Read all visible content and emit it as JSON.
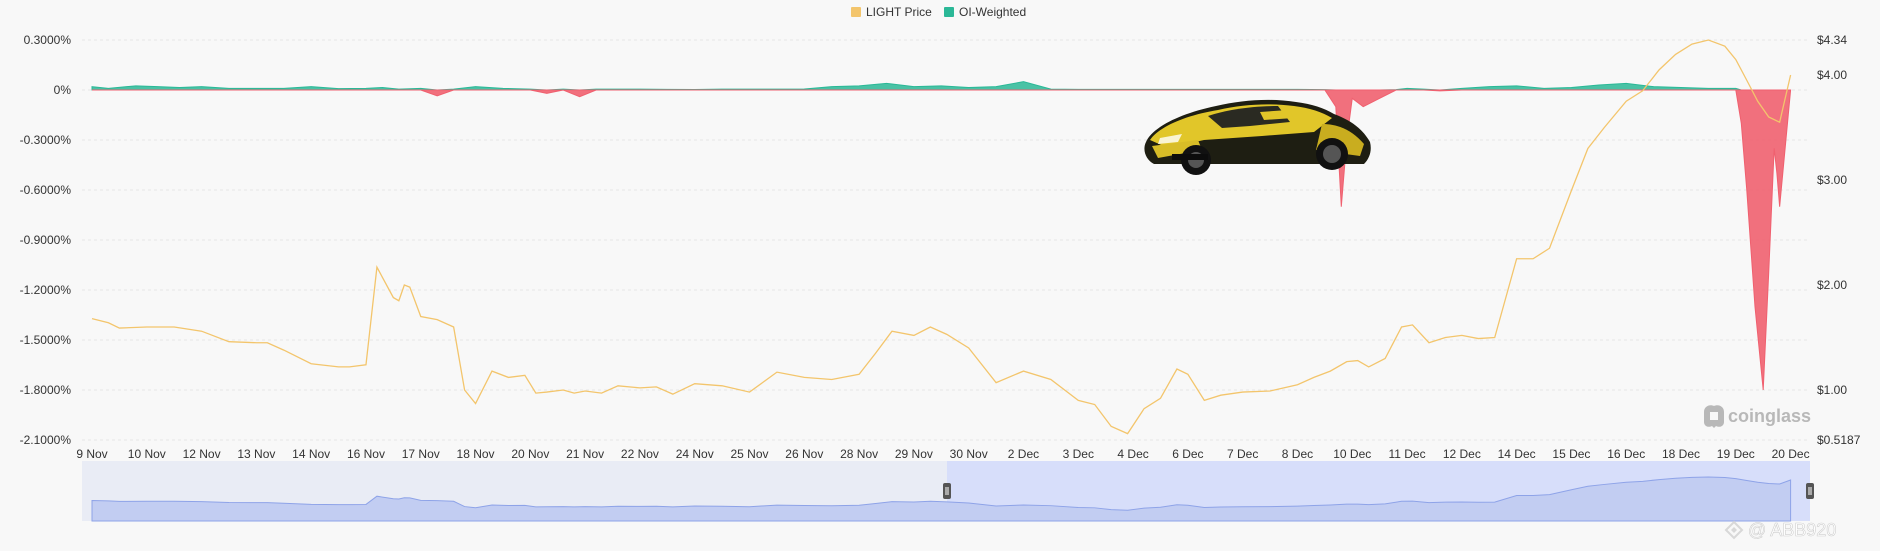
{
  "legend": [
    {
      "label": "LIGHT Price",
      "color": "#f3c56c"
    },
    {
      "label": "OI-Weighted",
      "color": "#2bb897"
    }
  ],
  "brand": {
    "logo_text": "coinglass",
    "icon": "coinglass-logo-icon"
  },
  "watermark": {
    "text": "@ ABB920",
    "icon": "binance-square-icon"
  },
  "chart_data": {
    "type": "area",
    "categories": [
      "9 Nov",
      "10 Nov",
      "12 Nov",
      "13 Nov",
      "14 Nov",
      "16 Nov",
      "17 Nov",
      "18 Nov",
      "20 Nov",
      "21 Nov",
      "22 Nov",
      "24 Nov",
      "25 Nov",
      "26 Nov",
      "28 Nov",
      "29 Nov",
      "30 Nov",
      "2 Dec",
      "3 Dec",
      "4 Dec",
      "6 Dec",
      "7 Dec",
      "8 Dec",
      "10 Dec",
      "11 Dec",
      "12 Dec",
      "14 Dec",
      "15 Dec",
      "16 Dec",
      "18 Dec",
      "19 Dec",
      "20 Dec"
    ],
    "y_left": {
      "ticks": [
        "0.3000%",
        "0%",
        "-0.3000%",
        "-0.6000%",
        "-0.9000%",
        "-1.2000%",
        "-1.5000%",
        "-1.8000%",
        "-2.1000%"
      ],
      "ylim": [
        -2.1,
        0.3
      ]
    },
    "y_right": {
      "ticks": [
        "$4.34",
        "$4.00",
        "$3.00",
        "$2.00",
        "$1.00",
        "$0.5187"
      ],
      "ylim": [
        0.5187,
        4.34
      ]
    },
    "series": [
      {
        "name": "OI-Weighted",
        "axis": "left",
        "positive_color": "#2bb897",
        "negative_color": "#f0606f",
        "x": [
          0,
          0.3,
          0.8,
          1.2,
          1.6,
          2,
          2.5,
          3,
          3.5,
          4,
          4.5,
          5,
          5.3,
          5.6,
          6,
          6.3,
          6.6,
          7,
          7.5,
          8,
          8.3,
          8.6,
          8.9,
          9.2,
          9.5,
          10,
          10.5,
          11,
          11.5,
          12,
          12.5,
          13,
          13.5,
          14,
          14.5,
          15,
          15.5,
          16,
          16.5,
          17,
          17.5,
          18,
          18.5,
          19,
          19.5,
          20,
          20.5,
          21,
          21.5,
          22,
          22.5,
          22.7,
          22.8,
          22.9,
          23,
          23.2,
          23.5,
          23.8,
          24,
          24.3,
          24.6,
          25,
          25.5,
          26,
          26.5,
          27,
          27.5,
          28,
          28.5,
          29,
          29.5,
          30,
          30.1,
          30.2,
          30.35,
          30.5,
          30.6,
          30.7,
          30.75,
          30.8,
          31
        ],
        "values": [
          0.02,
          0.01,
          0.025,
          0.02,
          0.015,
          0.02,
          0.01,
          0.01,
          0.01,
          0.02,
          0.008,
          0.01,
          0.015,
          0.005,
          0.01,
          -0.035,
          0.005,
          0.02,
          0.01,
          0.005,
          -0.02,
          0.005,
          -0.04,
          0.005,
          0.005,
          0.005,
          0.004,
          0.003,
          0.005,
          0.005,
          0.005,
          0.006,
          0.02,
          0.025,
          0.04,
          0.02,
          0.025,
          0.015,
          0.02,
          0.05,
          0.005,
          0.004,
          0.004,
          0.004,
          0.004,
          0.004,
          0.004,
          0.004,
          0.004,
          0.004,
          0.002,
          -0.1,
          -0.7,
          -0.3,
          -0.05,
          -0.1,
          -0.05,
          0.002,
          0.01,
          0.005,
          -0.005,
          0.01,
          0.02,
          0.025,
          0.01,
          0.015,
          0.03,
          0.04,
          0.02,
          0.015,
          0.01,
          0.01,
          -0.2,
          -0.6,
          -1.3,
          -1.8,
          -1.1,
          -0.35,
          -0.5,
          -0.7,
          0.0
        ]
      },
      {
        "name": "LIGHT Price",
        "axis": "right",
        "color": "#f3c56c",
        "x": [
          0,
          0.3,
          0.5,
          1,
          1.5,
          2,
          2.5,
          3,
          3.2,
          3.5,
          4,
          4.5,
          4.7,
          5,
          5.2,
          5.5,
          5.6,
          5.7,
          5.8,
          6,
          6.3,
          6.6,
          6.8,
          7,
          7.3,
          7.6,
          7.9,
          8.1,
          8.3,
          8.6,
          8.8,
          9,
          9.3,
          9.6,
          10,
          10.3,
          10.6,
          11,
          11.5,
          12,
          12.5,
          13,
          13.5,
          14,
          14.3,
          14.6,
          15,
          15.3,
          15.6,
          16,
          16.5,
          17,
          17.5,
          18,
          18.3,
          18.6,
          18.9,
          19.2,
          19.5,
          19.8,
          20,
          20.3,
          20.6,
          21,
          21.5,
          22,
          22.3,
          22.6,
          22.9,
          23.1,
          23.3,
          23.6,
          23.9,
          24.1,
          24.4,
          24.7,
          25,
          25.3,
          25.6,
          26,
          26.3,
          26.6,
          27,
          27.3,
          27.6,
          28,
          28.3,
          28.6,
          28.9,
          29.2,
          29.5,
          29.8,
          30,
          30.2,
          30.4,
          30.6,
          30.8,
          31
        ],
        "values": [
          1.68,
          1.64,
          1.59,
          1.6,
          1.6,
          1.56,
          1.46,
          1.45,
          1.45,
          1.38,
          1.25,
          1.22,
          1.22,
          1.24,
          2.17,
          1.88,
          1.85,
          2.0,
          1.98,
          1.7,
          1.67,
          1.6,
          1.0,
          0.87,
          1.18,
          1.12,
          1.14,
          0.97,
          0.98,
          1.0,
          0.97,
          0.99,
          0.97,
          1.04,
          1.02,
          1.03,
          0.96,
          1.06,
          1.04,
          0.98,
          1.17,
          1.12,
          1.1,
          1.15,
          1.35,
          1.56,
          1.52,
          1.6,
          1.53,
          1.4,
          1.07,
          1.18,
          1.1,
          0.9,
          0.86,
          0.65,
          0.58,
          0.82,
          0.92,
          1.2,
          1.15,
          0.9,
          0.95,
          0.98,
          0.99,
          1.05,
          1.12,
          1.18,
          1.27,
          1.28,
          1.22,
          1.3,
          1.6,
          1.62,
          1.45,
          1.5,
          1.52,
          1.49,
          1.5,
          2.25,
          2.25,
          2.35,
          2.9,
          3.3,
          3.5,
          3.75,
          3.85,
          4.05,
          4.2,
          4.3,
          4.34,
          4.28,
          4.15,
          3.95,
          3.75,
          3.6,
          3.55,
          4.0
        ]
      }
    ],
    "xlabel": "",
    "ylabel": "",
    "grid": true,
    "legend_position": "top-center",
    "range_selector": {
      "start": 0.5,
      "end": 1.0
    }
  }
}
